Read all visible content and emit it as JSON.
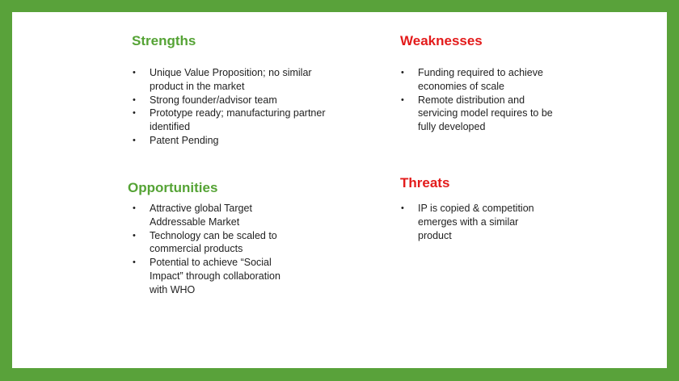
{
  "strengths": {
    "title": "Strengths",
    "items": [
      "Unique Value Proposition; no similar product in the market",
      "Strong founder/advisor team",
      "Prototype ready; manufacturing partner identified",
      "Patent Pending"
    ]
  },
  "weaknesses": {
    "title": "Weaknesses",
    "items": [
      "Funding required to achieve economies of scale",
      "Remote distribution and servicing model requires to be fully developed"
    ]
  },
  "opportunities": {
    "title": "Opportunities",
    "items": [
      "Attractive global Target Addressable Market",
      "Technology can be scaled to commercial products",
      "Potential to achieve “Social Impact” through collaboration with WHO"
    ]
  },
  "threats": {
    "title": "Threats",
    "items": [
      "IP is copied & competition emerges with a similar product"
    ]
  },
  "colors": {
    "border": "#59a23a",
    "positive": "#55a335",
    "negative": "#e31b1b"
  }
}
